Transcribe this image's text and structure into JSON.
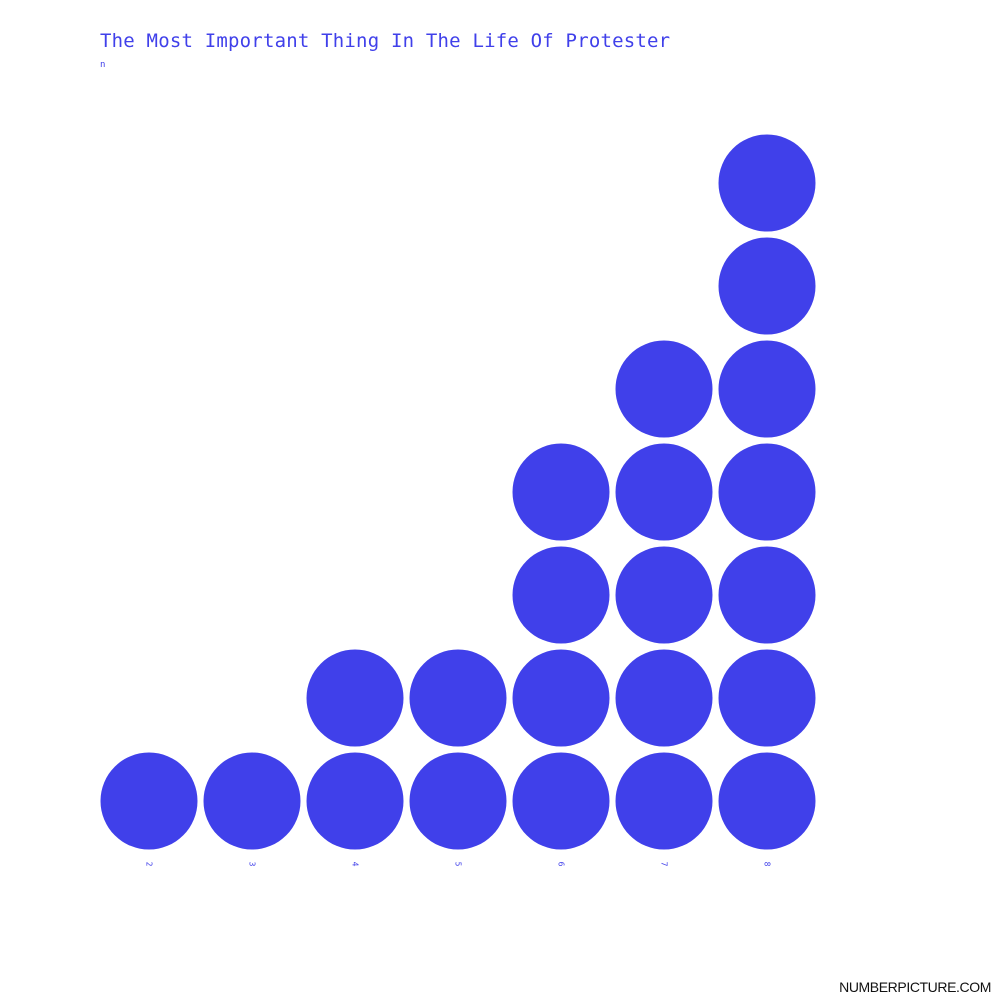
{
  "title": "The Most Important Thing In The Life Of Protester",
  "subtitle": "n",
  "brand": "NUMBERPICTURE.COM",
  "colors": {
    "dots": "#4040ea",
    "text": "#4040ea",
    "brand": "#111111",
    "background": "#ffffff"
  },
  "chart_data": {
    "type": "bar",
    "mark": "stacked-dots",
    "categories": [
      "2",
      "3",
      "4",
      "5",
      "6",
      "7",
      "8"
    ],
    "values": [
      1,
      1,
      2,
      2,
      4,
      5,
      7
    ],
    "ylim": [
      0,
      7
    ],
    "grid": false,
    "xlabel": "",
    "ylabel": ""
  }
}
